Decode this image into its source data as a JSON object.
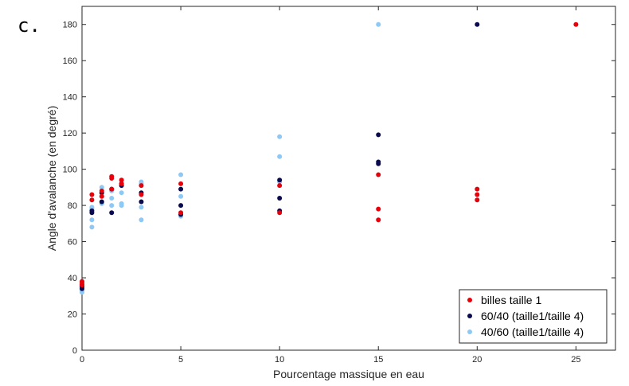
{
  "panel_label": "c.",
  "chart_data": {
    "type": "scatter",
    "title": "",
    "xlabel": "Pourcentage massique en eau",
    "ylabel": "Angle d'avalanche (en degré)",
    "xlim": [
      0,
      27
    ],
    "ylim": [
      0,
      190
    ],
    "xticks": [
      0,
      5,
      10,
      15,
      20,
      25
    ],
    "yticks": [
      0,
      20,
      40,
      60,
      80,
      100,
      120,
      140,
      160,
      180
    ],
    "grid": false,
    "legend_position": "bottom-right",
    "series": [
      {
        "name": "billes taille 1",
        "color": "#e8000b",
        "points": [
          [
            0,
            36
          ],
          [
            0,
            37
          ],
          [
            0,
            38
          ],
          [
            0.5,
            83
          ],
          [
            0.5,
            86
          ],
          [
            1,
            85
          ],
          [
            1,
            88
          ],
          [
            1.5,
            96
          ],
          [
            1.5,
            95
          ],
          [
            1.5,
            89
          ],
          [
            2,
            94
          ],
          [
            2,
            92
          ],
          [
            3,
            91
          ],
          [
            3,
            86
          ],
          [
            5,
            92
          ],
          [
            5,
            76
          ],
          [
            10,
            91
          ],
          [
            10,
            76
          ],
          [
            15,
            97
          ],
          [
            15,
            78
          ],
          [
            15,
            72
          ],
          [
            20,
            89
          ],
          [
            20,
            86
          ],
          [
            20,
            83
          ],
          [
            25,
            180
          ]
        ]
      },
      {
        "name": "60/40 (taille1/taille 4)",
        "color": "#0a0a50",
        "points": [
          [
            0,
            34
          ],
          [
            0,
            35
          ],
          [
            0,
            36
          ],
          [
            0.5,
            76
          ],
          [
            0.5,
            77
          ],
          [
            1,
            82
          ],
          [
            1,
            87
          ],
          [
            1.5,
            76
          ],
          [
            1.5,
            89
          ],
          [
            2,
            91
          ],
          [
            2,
            92
          ],
          [
            3,
            82
          ],
          [
            3,
            87
          ],
          [
            5,
            89
          ],
          [
            5,
            80
          ],
          [
            5,
            75
          ],
          [
            10,
            94
          ],
          [
            10,
            84
          ],
          [
            10,
            77
          ],
          [
            15,
            119
          ],
          [
            15,
            104
          ],
          [
            15,
            103
          ],
          [
            20,
            180
          ]
        ]
      },
      {
        "name": "40/60 (taille1/taille 4)",
        "color": "#8ec8f5",
        "points": [
          [
            0,
            32
          ],
          [
            0,
            33
          ],
          [
            0.5,
            68
          ],
          [
            0.5,
            72
          ],
          [
            0.5,
            78
          ],
          [
            0.5,
            79
          ],
          [
            1,
            81
          ],
          [
            1,
            90
          ],
          [
            1.5,
            80
          ],
          [
            1.5,
            84
          ],
          [
            1.5,
            88
          ],
          [
            2,
            80
          ],
          [
            2,
            81
          ],
          [
            2,
            87
          ],
          [
            3,
            72
          ],
          [
            3,
            79
          ],
          [
            3,
            92
          ],
          [
            3,
            93
          ],
          [
            5,
            97
          ],
          [
            5,
            85
          ],
          [
            5,
            74
          ],
          [
            10,
            118
          ],
          [
            10,
            107
          ],
          [
            10,
            93
          ],
          [
            15,
            180
          ],
          [
            15,
            104
          ]
        ]
      }
    ]
  }
}
